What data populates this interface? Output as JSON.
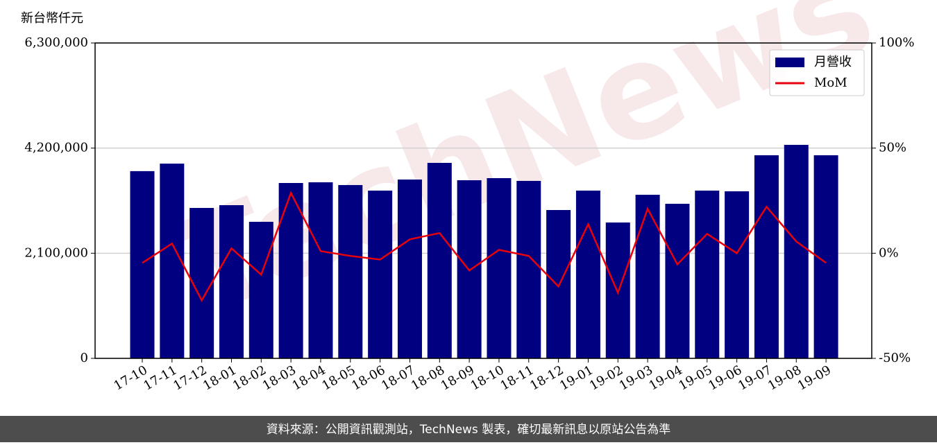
{
  "chart_data": {
    "type": "bar_line",
    "y_label": "新台幣仟元",
    "watermark": "TechNews",
    "footer": "資料來源：公開資訊觀測站，TechNews 製表，確切最新訊息以原站公告為準",
    "categories": [
      "17-10",
      "17-11",
      "17-12",
      "18-01",
      "18-02",
      "18-03",
      "18-04",
      "18-05",
      "18-06",
      "18-07",
      "18-08",
      "18-09",
      "18-10",
      "18-11",
      "18-12",
      "19-01",
      "19-02",
      "19-03",
      "19-04",
      "19-05",
      "19-06",
      "19-07",
      "19-08",
      "19-09"
    ],
    "series": [
      {
        "name": "月營收",
        "type": "bar",
        "color": "#000080",
        "values": [
          3740000,
          3890000,
          3005000,
          3060000,
          2728000,
          3503000,
          3517000,
          3462000,
          3351000,
          3572000,
          3905000,
          3558000,
          3600000,
          3545000,
          2963000,
          3351000,
          2714000,
          3268000,
          3088000,
          3351000,
          3337000,
          4057000,
          4265000,
          4057000
        ]
      },
      {
        "name": "MoM",
        "type": "line",
        "color": "#e8000b",
        "axis": "y2",
        "values": [
          -4.6,
          4.6,
          -22.4,
          2.3,
          -10.2,
          28.7,
          1.0,
          -1.3,
          -3.0,
          6.6,
          9.6,
          -8.2,
          1.6,
          -1.3,
          -15.8,
          13.8,
          -18.8,
          21.1,
          -5.3,
          9.2,
          0,
          22.1,
          5.6,
          -4.6
        ]
      }
    ],
    "ylim": [
      0,
      6300000
    ],
    "yticks": [
      {
        "value": 0,
        "label": "0"
      },
      {
        "value": 2100000,
        "label": "2,100,000"
      },
      {
        "value": 4200000,
        "label": "4,200,000"
      },
      {
        "value": 6300000,
        "label": "6,300,000"
      }
    ],
    "y2lim": [
      -50,
      100
    ],
    "y2ticks": [
      {
        "value": -50,
        "label": "-50%"
      },
      {
        "value": 0,
        "label": "0%"
      },
      {
        "value": 50,
        "label": "50%"
      },
      {
        "value": 100,
        "label": "100%"
      }
    ],
    "grid": true,
    "legend": "upper right"
  }
}
